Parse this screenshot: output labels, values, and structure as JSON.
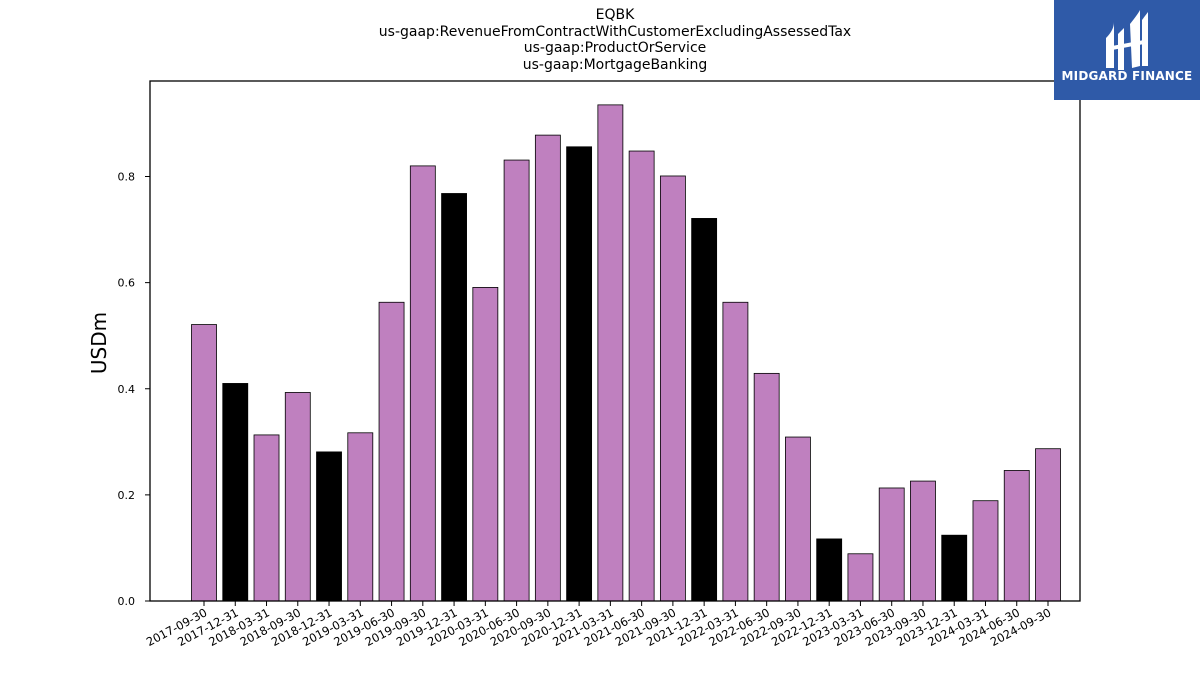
{
  "chart_data": {
    "type": "bar",
    "title_lines": [
      "EQBK",
      "us-gaap:RevenueFromContractWithCustomerExcludingAssessedTax",
      "us-gaap:ProductOrService",
      "us-gaap:MortgageBanking"
    ],
    "ylabel": "USDm",
    "ylim": [
      0,
      0.98
    ],
    "yticks": [
      "0.0",
      "0.2",
      "0.4",
      "0.6",
      "0.8"
    ],
    "categories": [
      "2017-09-30",
      "2017-12-31",
      "2018-03-31",
      "2018-09-30",
      "2018-12-31",
      "2019-03-31",
      "2019-06-30",
      "2019-09-30",
      "2019-12-31",
      "2020-03-31",
      "2020-06-30",
      "2020-09-30",
      "2020-12-31",
      "2021-03-31",
      "2021-06-30",
      "2021-09-30",
      "2021-12-31",
      "2022-03-31",
      "2022-06-30",
      "2022-09-30",
      "2022-12-31",
      "2023-03-31",
      "2023-06-30",
      "2023-09-30",
      "2023-12-31",
      "2024-03-31",
      "2024-06-30",
      "2024-09-30"
    ],
    "values": [
      0.521,
      0.41,
      0.313,
      0.393,
      0.281,
      0.317,
      0.563,
      0.82,
      0.768,
      0.591,
      0.831,
      0.878,
      0.856,
      0.935,
      0.848,
      0.801,
      0.721,
      0.563,
      0.429,
      0.309,
      0.117,
      0.089,
      0.213,
      0.226,
      0.124,
      0.189,
      0.246,
      0.287
    ],
    "highlight": [
      false,
      true,
      false,
      false,
      true,
      false,
      false,
      false,
      true,
      false,
      false,
      false,
      true,
      false,
      false,
      false,
      true,
      false,
      false,
      false,
      true,
      false,
      false,
      false,
      true,
      false,
      false,
      false
    ],
    "colors": {
      "normal": "#bf80bf",
      "highlight": "#000000",
      "edge": "#000000"
    },
    "grid": false
  },
  "logo": {
    "text": "MIDGARD FINANCE",
    "color": "#2f5aa8"
  }
}
